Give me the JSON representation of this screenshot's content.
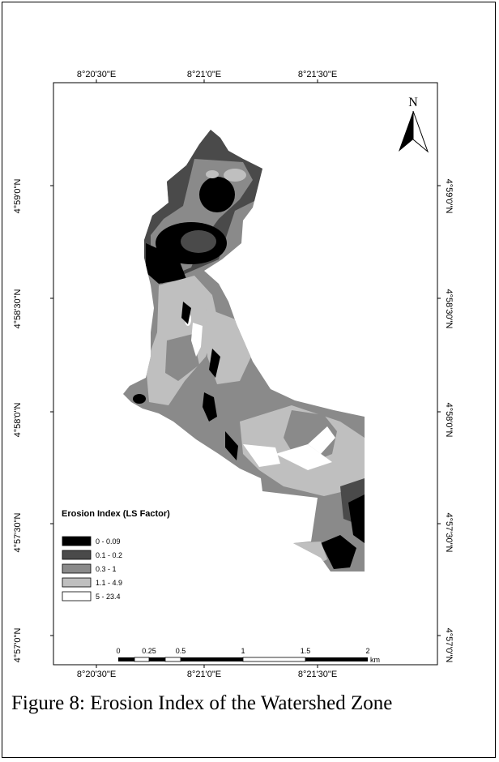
{
  "map": {
    "north_label": "N",
    "top_ticks": [
      "8°20'30\"E",
      "8°21'0\"E",
      "8°21'30\"E"
    ],
    "bottom_ticks": [
      "8°20'30\"E",
      "8°21'0\"E",
      "8°21'30\"E"
    ],
    "left_ticks": [
      "4°59'0\"N",
      "4°58'30\"N",
      "4°58'0\"N",
      "4°57'30\"N",
      "4°57'0\"N"
    ],
    "right_ticks": [
      "4°59'0\"N",
      "4°58'30\"N",
      "4°58'0\"N",
      "4°57'30\"N",
      "4°57'0\"N"
    ],
    "legend": {
      "title": "Erosion Index (LS Factor)",
      "classes": [
        {
          "label": "0 - 0.09",
          "color": "#000000"
        },
        {
          "label": "0.1 - 0.2",
          "color": "#4a4a4a"
        },
        {
          "label": "0.3 - 1",
          "color": "#8a8a8a"
        },
        {
          "label": "1.1 - 4.9",
          "color": "#bfbfbf"
        },
        {
          "label": "5 - 23.4",
          "color": "#ffffff"
        }
      ]
    },
    "scale_bar": {
      "labels": [
        "0",
        "0.25",
        "0.5",
        "1",
        "1.5",
        "2"
      ],
      "unit": "km"
    }
  },
  "caption": "Figure 8: Erosion Index of the Watershed Zone"
}
